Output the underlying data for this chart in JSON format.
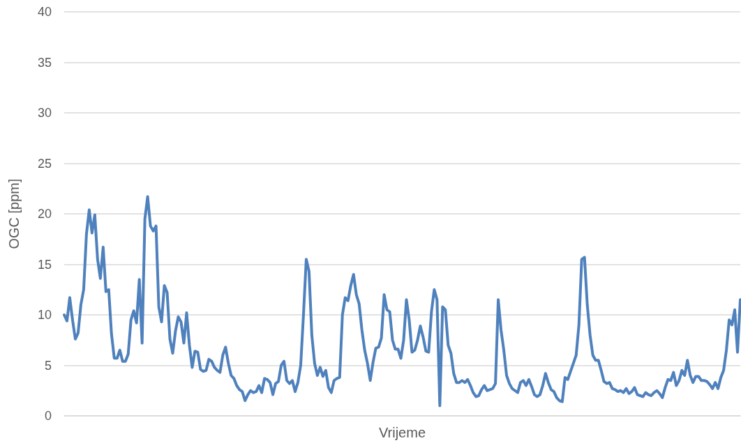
{
  "chart_data": {
    "type": "line",
    "xlabel": "Vrijeme",
    "ylabel": "OGC [ppm]",
    "color": "#4f81bd",
    "ylim": [
      0,
      40
    ],
    "yticks": [
      0,
      5,
      10,
      15,
      20,
      25,
      30,
      35,
      40
    ],
    "grid": "y",
    "line_style": "solid",
    "tick_labels": "y",
    "categories": [
      null,
      null,
      null,
      null,
      null,
      null,
      null,
      null,
      null,
      null,
      null,
      null,
      null,
      null,
      null,
      null,
      null,
      null,
      null,
      null,
      null,
      null,
      null,
      null,
      null,
      null,
      null,
      null,
      null,
      null,
      null,
      null,
      null,
      null,
      null,
      null,
      null,
      null,
      null,
      null,
      null,
      null,
      null,
      null,
      null,
      null,
      null,
      null,
      null,
      null,
      null,
      null,
      null,
      null,
      null,
      null,
      null,
      null,
      null,
      null,
      null,
      null,
      null,
      null,
      null,
      null,
      null,
      null,
      null,
      null,
      null,
      null,
      null,
      null,
      null,
      null,
      null,
      null,
      null,
      null,
      null,
      null,
      null,
      null,
      null,
      null,
      null,
      null,
      null,
      null,
      null,
      null,
      null,
      null,
      null,
      null,
      null,
      null,
      null,
      null,
      null,
      null,
      null,
      null,
      null,
      null,
      null,
      null,
      null,
      null,
      null,
      null,
      null,
      null,
      null,
      null,
      null,
      null,
      null,
      null,
      null,
      null,
      null,
      null,
      null,
      null,
      null,
      null,
      null,
      null,
      null,
      null,
      null,
      null,
      null,
      null,
      null,
      null,
      null,
      null,
      null,
      null,
      null,
      null,
      null,
      null,
      null,
      null,
      null,
      null,
      null,
      null,
      null,
      null,
      null,
      null,
      null,
      null,
      null,
      null,
      null,
      null,
      null,
      null,
      null,
      null,
      null,
      null,
      null,
      null,
      null,
      null,
      null,
      null,
      null,
      null,
      null,
      null,
      null,
      null,
      null,
      null,
      null,
      null,
      null,
      null,
      null,
      null,
      null,
      null,
      null,
      null,
      null,
      null,
      null,
      null,
      null,
      null,
      null,
      null,
      null,
      null,
      null,
      null,
      null,
      null,
      null,
      null,
      null,
      null,
      null,
      null,
      null,
      null,
      null,
      null,
      null,
      null,
      null,
      null,
      null,
      null,
      null,
      null,
      null,
      null,
      null,
      null,
      null,
      null,
      null,
      null,
      null,
      null,
      null,
      null,
      null,
      null,
      null,
      null,
      null,
      null,
      null,
      null
    ],
    "values": [
      10,
      9.4,
      11.7,
      9.5,
      7.6,
      8.2,
      11,
      12.5,
      18,
      20.4,
      18.1,
      19.9,
      15.5,
      13.6,
      16.7,
      12.3,
      12.5,
      8.1,
      5.7,
      5.7,
      6.5,
      5.4,
      5.4,
      6.1,
      9.5,
      10.4,
      9.2,
      13.5,
      7.2,
      19.5,
      21.7,
      18.8,
      18.3,
      18.8,
      10.8,
      9.3,
      12.9,
      12.2,
      7.6,
      6.2,
      8.4,
      9.8,
      9.3,
      7.2,
      10.2,
      7,
      4.8,
      6.4,
      6.3,
      4.6,
      4.4,
      4.5,
      5.6,
      5.4,
      4.8,
      4.5,
      4.3,
      6,
      6.8,
      5.2,
      4,
      3.7,
      3,
      2.6,
      2.4,
      1.5,
      2.1,
      2.5,
      2.3,
      2.4,
      3,
      2.3,
      3.7,
      3.6,
      3.3,
      2.1,
      3.2,
      3.4,
      5,
      5.4,
      3.5,
      3.2,
      3.5,
      2.4,
      3.3,
      5,
      10,
      15.5,
      14.3,
      8,
      5.2,
      4,
      4.8,
      3.9,
      4.5,
      2.8,
      2.3,
      3.5,
      3.7,
      3.8,
      10,
      11.7,
      11.4,
      12.9,
      14,
      12,
      11.1,
      8.5,
      6.5,
      5.2,
      3.5,
      5.3,
      6.7,
      6.8,
      7.7,
      12,
      10.5,
      10.3,
      7.5,
      6.6,
      6.6,
      5.7,
      7.5,
      11.5,
      9.5,
      6.3,
      6.5,
      7.5,
      8.9,
      7.8,
      6.4,
      6.3,
      10.3,
      12.5,
      11.5,
      1,
      10.8,
      10.5,
      7,
      6.2,
      4.2,
      3.3,
      3.3,
      3.5,
      3.3,
      3.6,
      3,
      2.3,
      1.9,
      2,
      2.6,
      3,
      2.5,
      2.6,
      2.7,
      3.2,
      11.5,
      8.5,
      6.5,
      4,
      3.2,
      2.7,
      2.5,
      2.3,
      3.3,
      3.5,
      3,
      3.6,
      2.9,
      2.1,
      1.9,
      2.1,
      3,
      4.2,
      3.3,
      2.6,
      2.4,
      1.8,
      1.5,
      1.4,
      3.8,
      3.6,
      4.4,
      5.2,
      6,
      9,
      15.5,
      15.7,
      11,
      8,
      6,
      5.5,
      5.5,
      4.5,
      3.4,
      3.2,
      3.3,
      2.7,
      2.6,
      2.4,
      2.5,
      2.3,
      2.7,
      2.2,
      2.4,
      2.8,
      2.1,
      2,
      1.9,
      2.3,
      2.1,
      2,
      2.3,
      2.5,
      2.2,
      1.8,
      2.8,
      3.6,
      3.5,
      4.3,
      3,
      3.5,
      4.5,
      4,
      5.5,
      4,
      3.3,
      3.9,
      3.9,
      3.5,
      3.5,
      3.4,
      3.1,
      2.7,
      3.3,
      2.7,
      3.8,
      4.5,
      6.5,
      9.5,
      9,
      10.5,
      6.3,
      11.5
    ]
  }
}
